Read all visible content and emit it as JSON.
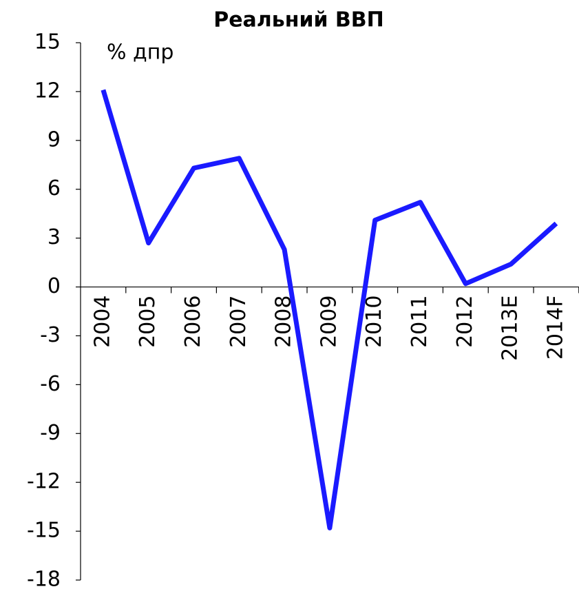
{
  "chart_data": {
    "type": "line",
    "title": "Реальний ВВП",
    "annotation": "% дпр",
    "categories": [
      "2004",
      "2005",
      "2006",
      "2007",
      "2008",
      "2009",
      "2010",
      "2011",
      "2012",
      "2013E",
      "2014F"
    ],
    "series": [
      {
        "name": "Реальний ВВП",
        "color": "#1a1aff",
        "values": [
          12.1,
          2.7,
          7.3,
          7.9,
          2.3,
          -14.8,
          4.1,
          5.2,
          0.2,
          1.4,
          3.9
        ]
      }
    ],
    "ylim": [
      -18,
      15
    ],
    "yticks": [
      -18,
      -15,
      -12,
      -9,
      -6,
      -3,
      0,
      3,
      6,
      9,
      12,
      15
    ],
    "grid": false
  }
}
